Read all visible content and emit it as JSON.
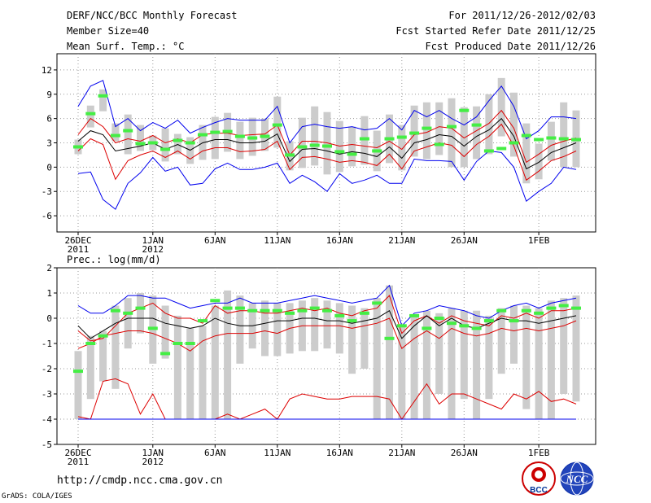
{
  "header": {
    "title": "DERF/NCC/BCC Monthly Forecast",
    "member_size": "Member Size=40",
    "variable": "Mean Surf. Temp.: °C",
    "forecast_range": "For 2011/12/26-2012/02/03",
    "started_date": "Fcst Started Refer Date 2011/12/25",
    "produced_date": "Fcst Produced Date 2011/12/26"
  },
  "footer": {
    "url": "http://cmdp.ncc.cma.gov.cn",
    "credit": "GrADS: COLA/IGES",
    "logo1_text": "BCC",
    "logo2_text": "NCC"
  },
  "colors": {
    "blue": "#0000ee",
    "red": "#dd0000",
    "black": "#000000",
    "green": "#44ee44",
    "box": "#cccccc",
    "grid": "#999999"
  },
  "chart_data": [
    {
      "type": "line",
      "title": "Mean Surf. Temp.: °C",
      "ylim": [
        -8,
        14
      ],
      "yticks": [
        -6,
        -3,
        0,
        3,
        6,
        9,
        12
      ],
      "days": 40,
      "x_tick_labels": [
        {
          "day": 0,
          "label": "26DEC",
          "sub": "2011"
        },
        {
          "day": 6,
          "label": "1JAN",
          "sub": "2012"
        },
        {
          "day": 11,
          "label": "6JAN",
          "sub": ""
        },
        {
          "day": 16,
          "label": "11JAN",
          "sub": ""
        },
        {
          "day": 21,
          "label": "16JAN",
          "sub": ""
        },
        {
          "day": 26,
          "label": "21JAN",
          "sub": ""
        },
        {
          "day": 31,
          "label": "26JAN",
          "sub": ""
        },
        {
          "day": 37,
          "label": "1FEB",
          "sub": ""
        }
      ],
      "series": [
        {
          "name": "max",
          "color": "blue",
          "values": [
            7.5,
            10.0,
            10.7,
            5.0,
            6.0,
            4.5,
            5.5,
            4.8,
            5.8,
            4.2,
            4.9,
            5.5,
            6.0,
            5.8,
            5.8,
            5.8,
            7.5,
            3.0,
            5.0,
            5.3,
            5.0,
            4.8,
            5.0,
            4.6,
            4.8,
            6.0,
            4.6,
            7.0,
            6.2,
            7.0,
            6.0,
            5.2,
            6.2,
            8.2,
            10.0,
            7.5,
            3.5,
            4.5,
            6.2,
            6.2,
            6.0
          ]
        },
        {
          "name": "upper",
          "color": "red",
          "values": [
            4.0,
            6.0,
            5.0,
            3.0,
            3.5,
            3.2,
            3.9,
            3.0,
            3.5,
            3.0,
            4.0,
            4.2,
            4.2,
            3.9,
            4.0,
            4.1,
            5.2,
            1.5,
            3.2,
            3.2,
            3.0,
            2.6,
            2.8,
            2.6,
            2.4,
            3.2,
            2.2,
            4.0,
            4.3,
            5.0,
            4.8,
            3.6,
            4.5,
            5.4,
            7.0,
            4.8,
            0.6,
            1.6,
            2.7,
            3.2,
            3.6
          ]
        },
        {
          "name": "mean",
          "color": "black",
          "values": [
            3.2,
            4.5,
            4.0,
            2.0,
            2.3,
            2.6,
            3.0,
            2.2,
            2.8,
            2.1,
            3.0,
            3.4,
            3.4,
            3.0,
            3.0,
            3.2,
            4.1,
            0.7,
            2.2,
            2.3,
            2.0,
            1.6,
            1.9,
            1.7,
            1.3,
            2.5,
            1.1,
            3.0,
            3.4,
            4.0,
            3.8,
            2.6,
            3.8,
            4.6,
            6.0,
            3.8,
            -0.2,
            0.6,
            1.8,
            2.4,
            3.0
          ]
        },
        {
          "name": "lower",
          "color": "red",
          "values": [
            2.0,
            3.5,
            2.8,
            -1.5,
            0.8,
            1.5,
            2.0,
            1.2,
            2.0,
            1.0,
            2.0,
            2.4,
            2.4,
            1.9,
            2.0,
            2.2,
            3.2,
            -0.3,
            1.2,
            1.3,
            1.0,
            0.6,
            0.8,
            0.6,
            0.2,
            1.6,
            -0.2,
            2.0,
            2.5,
            3.0,
            2.7,
            1.3,
            2.8,
            3.8,
            5.3,
            2.6,
            -1.6,
            -0.5,
            0.8,
            1.3,
            2.0
          ]
        },
        {
          "name": "min",
          "color": "blue",
          "values": [
            -0.8,
            -0.6,
            -4.0,
            -5.2,
            -2.0,
            -0.7,
            1.2,
            -0.5,
            0.0,
            -2.2,
            -2.0,
            -0.2,
            0.5,
            -0.3,
            -0.3,
            0.0,
            0.5,
            -2.0,
            -1.0,
            -1.8,
            -3.0,
            -0.8,
            -2.0,
            -1.6,
            -1.0,
            -2.0,
            -2.0,
            1.0,
            0.8,
            0.8,
            0.7,
            -1.6,
            0.7,
            2.0,
            1.8,
            0.0,
            -4.2,
            -3.0,
            -2.0,
            0.0,
            -0.3
          ]
        }
      ],
      "boxes": [
        [
          1.6,
          3.4
        ],
        [
          4.9,
          7.6
        ],
        [
          6.9,
          9.6
        ],
        [
          3.2,
          5.4
        ],
        [
          1.6,
          6.5
        ],
        [
          2.0,
          5.2
        ],
        [
          2.1,
          3.9
        ],
        [
          0.7,
          4.8
        ],
        [
          1.6,
          4.1
        ],
        [
          0.4,
          3.7
        ],
        [
          0.9,
          5.2
        ],
        [
          1.0,
          6.2
        ],
        [
          1.9,
          6.7
        ],
        [
          1.0,
          5.6
        ],
        [
          1.4,
          6.1
        ],
        [
          2.0,
          6.0
        ],
        [
          2.4,
          8.7
        ],
        [
          -0.4,
          3.2
        ],
        [
          -0.1,
          6.1
        ],
        [
          0.2,
          7.5
        ],
        [
          -0.9,
          6.8
        ],
        [
          -0.6,
          5.7
        ],
        [
          0.1,
          5.0
        ],
        [
          0.3,
          6.3
        ],
        [
          -0.5,
          4.5
        ],
        [
          0.5,
          6.5
        ],
        [
          -0.4,
          5.2
        ],
        [
          1.3,
          7.6
        ],
        [
          1.0,
          8.0
        ],
        [
          1.5,
          8.0
        ],
        [
          0.0,
          8.5
        ],
        [
          0.0,
          7.4
        ],
        [
          1.0,
          7.5
        ],
        [
          1.6,
          9.0
        ],
        [
          3.8,
          11.0
        ],
        [
          1.3,
          9.2
        ],
        [
          -2.0,
          5.4
        ],
        [
          -1.5,
          2.9
        ],
        [
          0.8,
          5.6
        ],
        [
          0.0,
          8.0
        ],
        [
          0.0,
          7.0
        ]
      ],
      "green_marks": [
        2.5,
        6.6,
        8.8,
        3.9,
        4.5,
        2.9,
        3.0,
        2.2,
        3.3,
        3.0,
        4.0,
        4.3,
        4.4,
        3.8,
        3.6,
        3.8,
        5.2,
        1.5,
        2.5,
        2.7,
        2.6,
        1.9,
        1.6,
        3.5,
        2.0,
        3.5,
        3.7,
        4.2,
        4.8,
        2.8,
        5.0,
        7.0,
        5.2,
        2.0,
        2.3,
        3.0,
        3.9,
        3.4,
        3.6,
        3.5,
        3.4
      ]
    },
    {
      "type": "line",
      "title": "Prec.: log(mm/d)",
      "ylim": [
        -5,
        2
      ],
      "yticks": [
        -5,
        -4,
        -3,
        -2,
        -1,
        0,
        1,
        2
      ],
      "days": 40,
      "x_tick_labels": [
        {
          "day": 0,
          "label": "26DEC",
          "sub": "2011"
        },
        {
          "day": 6,
          "label": "1JAN",
          "sub": "2012"
        },
        {
          "day": 11,
          "label": "6JAN",
          "sub": ""
        },
        {
          "day": 16,
          "label": "11JAN",
          "sub": ""
        },
        {
          "day": 21,
          "label": "16JAN",
          "sub": ""
        },
        {
          "day": 26,
          "label": "21JAN",
          "sub": ""
        },
        {
          "day": 31,
          "label": "26JAN",
          "sub": ""
        },
        {
          "day": 37,
          "label": "1FEB",
          "sub": ""
        }
      ],
      "series": [
        {
          "name": "max",
          "color": "blue",
          "values": [
            0.5,
            0.2,
            0.2,
            0.5,
            0.9,
            0.9,
            0.8,
            0.8,
            0.6,
            0.4,
            0.5,
            0.6,
            0.6,
            0.8,
            0.6,
            0.6,
            0.6,
            0.7,
            0.8,
            0.9,
            0.8,
            0.7,
            0.6,
            0.7,
            0.8,
            1.3,
            -0.3,
            0.2,
            0.3,
            0.5,
            0.4,
            0.3,
            0.1,
            0.0,
            0.3,
            0.5,
            0.6,
            0.4,
            0.6,
            0.7,
            0.8
          ]
        },
        {
          "name": "upper",
          "color": "red",
          "values": [
            -0.5,
            -0.9,
            -0.8,
            -0.3,
            0.2,
            0.4,
            0.6,
            0.2,
            0.0,
            0.0,
            -0.2,
            0.5,
            0.2,
            0.3,
            0.3,
            0.2,
            0.2,
            0.3,
            0.4,
            0.3,
            0.4,
            0.2,
            0.1,
            0.3,
            0.4,
            0.9,
            -0.6,
            -0.1,
            0.1,
            -0.2,
            0.1,
            -0.1,
            -0.2,
            -0.3,
            0.1,
            0.0,
            0.2,
            0.0,
            0.3,
            0.3,
            0.4
          ]
        },
        {
          "name": "mean",
          "color": "black",
          "values": [
            -0.3,
            -0.8,
            -0.5,
            -0.2,
            0.0,
            0.0,
            0.0,
            -0.2,
            -0.3,
            -0.4,
            -0.3,
            0.0,
            -0.2,
            -0.3,
            -0.3,
            -0.2,
            -0.1,
            -0.1,
            0.0,
            0.0,
            -0.1,
            -0.1,
            -0.2,
            -0.1,
            0.0,
            0.3,
            -0.8,
            -0.3,
            0.1,
            -0.3,
            0.0,
            -0.3,
            -0.4,
            -0.2,
            0.0,
            -0.1,
            -0.1,
            -0.2,
            -0.1,
            0.0,
            0.1
          ]
        },
        {
          "name": "lower",
          "color": "red",
          "values": [
            -1.2,
            -1.0,
            -0.7,
            -0.6,
            -0.5,
            -0.5,
            -0.6,
            -0.8,
            -1.0,
            -1.3,
            -0.9,
            -0.7,
            -0.6,
            -0.6,
            -0.6,
            -0.5,
            -0.6,
            -0.4,
            -0.3,
            -0.3,
            -0.3,
            -0.3,
            -0.4,
            -0.3,
            -0.2,
            0.0,
            -1.2,
            -0.8,
            -0.5,
            -0.8,
            -0.4,
            -0.6,
            -0.7,
            -0.6,
            -0.4,
            -0.5,
            -0.4,
            -0.5,
            -0.4,
            -0.3,
            -0.1
          ]
        },
        {
          "name": "min2",
          "color": "red",
          "values": [
            -3.9,
            -4.0,
            -2.5,
            -2.4,
            -2.6,
            -3.8,
            -3.0,
            -4.0,
            -4.0,
            -4.0,
            -4.0,
            -4.0,
            -3.8,
            -4.0,
            -3.8,
            -3.6,
            -4.0,
            -3.2,
            -3.0,
            -3.1,
            -3.2,
            -3.2,
            -3.1,
            -3.1,
            -3.1,
            -3.2,
            -4.0,
            -3.3,
            -2.6,
            -3.4,
            -3.0,
            -3.0,
            -3.2,
            -3.4,
            -3.6,
            -3.0,
            -3.2,
            -2.9,
            -3.3,
            -3.2,
            -3.4
          ]
        },
        {
          "name": "min",
          "color": "blue",
          "values": [
            -4.0,
            -4.0,
            -4.0,
            -4.0,
            -4.0,
            -4.0,
            -4.0,
            -4.0,
            -4.0,
            -4.0,
            -4.0,
            -4.0,
            -4.0,
            -4.0,
            -4.0,
            -4.0,
            -4.0,
            -4.0,
            -4.0,
            -4.0,
            -4.0,
            -4.0,
            -4.0,
            -4.0,
            -4.0,
            -4.0,
            -4.0,
            -4.0,
            -4.0,
            -4.0,
            -4.0,
            -4.0,
            -4.0,
            -4.0,
            -4.0,
            -4.0,
            -4.0,
            -4.0,
            -4.0,
            -4.0,
            -4.0
          ]
        }
      ],
      "boxes": [
        [
          -4.0,
          -1.3
        ],
        [
          -3.2,
          -0.7
        ],
        [
          -2.5,
          -0.5
        ],
        [
          -2.8,
          0.5
        ],
        [
          -1.2,
          0.8
        ],
        [
          -0.6,
          1.0
        ],
        [
          -1.8,
          0.9
        ],
        [
          -1.6,
          0.5
        ],
        [
          -4.0,
          0.1
        ],
        [
          -4.0,
          -0.4
        ],
        [
          -4.0,
          -0.3
        ],
        [
          -4.0,
          0.5
        ],
        [
          -4.0,
          1.1
        ],
        [
          -1.8,
          0.9
        ],
        [
          -1.2,
          0.6
        ],
        [
          -1.5,
          0.7
        ],
        [
          -1.5,
          0.6
        ],
        [
          -1.4,
          0.6
        ],
        [
          -1.3,
          0.7
        ],
        [
          -1.3,
          0.8
        ],
        [
          -1.2,
          0.7
        ],
        [
          -1.4,
          0.6
        ],
        [
          -2.2,
          0.5
        ],
        [
          -2.0,
          0.4
        ],
        [
          -4.0,
          0.8
        ],
        [
          -4.0,
          1.3
        ],
        [
          -4.0,
          -0.3
        ],
        [
          -4.0,
          0.1
        ],
        [
          -4.0,
          0.3
        ],
        [
          -3.0,
          0.2
        ],
        [
          -4.0,
          0.4
        ],
        [
          -3.2,
          0.3
        ],
        [
          -4.0,
          0.3
        ],
        [
          -3.2,
          0.1
        ],
        [
          -2.2,
          0.4
        ],
        [
          -1.8,
          0.5
        ],
        [
          -3.6,
          0.5
        ],
        [
          -4.0,
          0.4
        ],
        [
          -4.0,
          0.7
        ],
        [
          -3.0,
          0.8
        ],
        [
          -3.3,
          0.9
        ]
      ],
      "green_marks": [
        -2.1,
        -1.0,
        -0.7,
        0.3,
        0.2,
        0.4,
        -0.4,
        -1.4,
        -1.0,
        -1.0,
        -0.1,
        0.7,
        0.4,
        0.4,
        0.3,
        0.3,
        0.3,
        0.2,
        0.3,
        0.4,
        0.3,
        0.1,
        -0.1,
        0.2,
        0.6,
        -0.8,
        -0.3,
        0.1,
        -0.4,
        0.0,
        -0.2,
        -0.3,
        -0.4,
        -0.1,
        0.3,
        -0.1,
        0.3,
        0.2,
        0.4,
        0.5,
        0.4
      ]
    }
  ]
}
